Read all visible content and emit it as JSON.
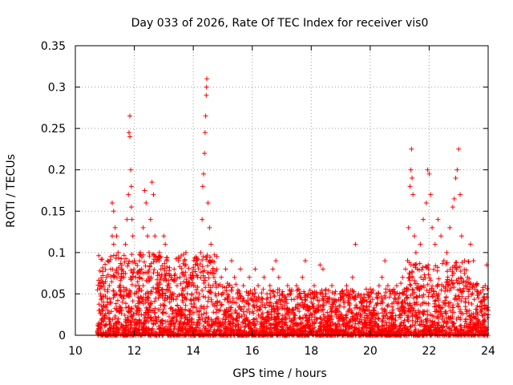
{
  "chart_data": {
    "type": "scatter",
    "title": "Day 033 of 2026, Rate Of TEC Index for receiver vis0",
    "xlabel": "GPS time / hours",
    "ylabel": "ROTI / TECUs",
    "xlim": [
      10,
      24
    ],
    "ylim": [
      0,
      0.35
    ],
    "x_ticks": [
      10,
      12,
      14,
      16,
      18,
      20,
      22,
      24
    ],
    "x_tick_labels": [
      "10",
      "12",
      "14",
      "16",
      "18",
      "20",
      "22",
      "24"
    ],
    "y_ticks": [
      0,
      0.05,
      0.1,
      0.15,
      0.2,
      0.25,
      0.3,
      0.35
    ],
    "y_tick_labels": [
      "0",
      "0.05",
      "0.1",
      "0.15",
      "0.2",
      "0.25",
      "0.3",
      "0.35"
    ],
    "grid": true,
    "marker": "plus",
    "marker_color": "#ff0000",
    "series": [
      {
        "name": "ROTI",
        "points": [
          [
            10.8,
            0.01
          ],
          [
            10.8,
            0.03
          ],
          [
            10.85,
            0.05
          ],
          [
            10.9,
            0.02
          ],
          [
            10.9,
            0.065
          ],
          [
            10.95,
            0.04
          ],
          [
            11.0,
            0.055
          ],
          [
            11.0,
            0.02
          ],
          [
            11.05,
            0.07
          ],
          [
            11.1,
            0.03
          ],
          [
            11.1,
            0.09
          ],
          [
            11.15,
            0.06
          ],
          [
            11.2,
            0.08
          ],
          [
            11.2,
            0.04
          ],
          [
            11.25,
            0.16
          ],
          [
            11.25,
            0.12
          ],
          [
            11.3,
            0.15
          ],
          [
            11.3,
            0.11
          ],
          [
            11.35,
            0.13
          ],
          [
            11.35,
            0.05
          ],
          [
            11.4,
            0.12
          ],
          [
            11.4,
            0.03
          ],
          [
            11.45,
            0.1
          ],
          [
            11.5,
            0.06
          ],
          [
            11.55,
            0.08
          ],
          [
            11.6,
            0.04
          ],
          [
            11.65,
            0.07
          ],
          [
            11.7,
            0.11
          ],
          [
            11.75,
            0.14
          ],
          [
            11.8,
            0.17
          ],
          [
            11.82,
            0.245
          ],
          [
            11.85,
            0.265
          ],
          [
            11.85,
            0.24
          ],
          [
            11.88,
            0.2
          ],
          [
            11.9,
            0.18
          ],
          [
            11.9,
            0.155
          ],
          [
            11.92,
            0.14
          ],
          [
            11.95,
            0.12
          ],
          [
            12.0,
            0.09
          ],
          [
            12.0,
            0.05
          ],
          [
            12.05,
            0.07
          ],
          [
            12.1,
            0.03
          ],
          [
            12.15,
            0.06
          ],
          [
            12.2,
            0.1
          ],
          [
            12.25,
            0.08
          ],
          [
            12.3,
            0.13
          ],
          [
            12.35,
            0.175
          ],
          [
            12.4,
            0.16
          ],
          [
            12.45,
            0.12
          ],
          [
            12.5,
            0.1
          ],
          [
            12.55,
            0.14
          ],
          [
            12.6,
            0.185
          ],
          [
            12.65,
            0.17
          ],
          [
            12.7,
            0.12
          ],
          [
            12.75,
            0.09
          ],
          [
            12.8,
            0.06
          ],
          [
            12.85,
            0.1
          ],
          [
            12.9,
            0.08
          ],
          [
            12.95,
            0.05
          ],
          [
            13.0,
            0.12
          ],
          [
            13.05,
            0.11
          ],
          [
            13.1,
            0.09
          ],
          [
            13.15,
            0.06
          ],
          [
            13.2,
            0.04
          ],
          [
            13.25,
            0.07
          ],
          [
            13.3,
            0.05
          ],
          [
            13.35,
            0.08
          ],
          [
            13.4,
            0.03
          ],
          [
            13.45,
            0.06
          ],
          [
            13.5,
            0.09
          ],
          [
            13.55,
            0.07
          ],
          [
            13.6,
            0.05
          ],
          [
            13.65,
            0.04
          ],
          [
            13.7,
            0.09
          ],
          [
            13.75,
            0.1
          ],
          [
            13.8,
            0.06
          ],
          [
            13.85,
            0.03
          ],
          [
            13.9,
            0.07
          ],
          [
            13.95,
            0.05
          ],
          [
            14.0,
            0.08
          ],
          [
            14.05,
            0.06
          ],
          [
            14.1,
            0.09
          ],
          [
            14.15,
            0.07
          ],
          [
            14.2,
            0.05
          ],
          [
            14.25,
            0.1
          ],
          [
            14.3,
            0.14
          ],
          [
            14.32,
            0.18
          ],
          [
            14.35,
            0.195
          ],
          [
            14.38,
            0.22
          ],
          [
            14.4,
            0.245
          ],
          [
            14.42,
            0.265
          ],
          [
            14.44,
            0.29
          ],
          [
            14.45,
            0.3
          ],
          [
            14.46,
            0.31
          ],
          [
            14.5,
            0.16
          ],
          [
            14.55,
            0.13
          ],
          [
            14.6,
            0.11
          ],
          [
            14.65,
            0.09
          ],
          [
            14.7,
            0.07
          ],
          [
            14.75,
            0.05
          ],
          [
            14.8,
            0.08
          ],
          [
            14.85,
            0.06
          ],
          [
            14.9,
            0.04
          ],
          [
            14.95,
            0.07
          ],
          [
            15.0,
            0.05
          ],
          [
            15.1,
            0.08
          ],
          [
            15.2,
            0.06
          ],
          [
            15.3,
            0.09
          ],
          [
            15.4,
            0.07
          ],
          [
            15.5,
            0.05
          ],
          [
            15.6,
            0.08
          ],
          [
            15.7,
            0.06
          ],
          [
            15.8,
            0.04
          ],
          [
            15.9,
            0.07
          ],
          [
            16.0,
            0.05
          ],
          [
            16.1,
            0.08
          ],
          [
            16.2,
            0.06
          ],
          [
            16.3,
            0.04
          ],
          [
            16.4,
            0.07
          ],
          [
            16.5,
            0.05
          ],
          [
            16.6,
            0.06
          ],
          [
            16.7,
            0.08
          ],
          [
            16.8,
            0.09
          ],
          [
            16.9,
            0.07
          ],
          [
            17.0,
            0.05
          ],
          [
            17.1,
            0.04
          ],
          [
            17.2,
            0.06
          ],
          [
            17.3,
            0.05
          ],
          [
            17.4,
            0.03
          ],
          [
            17.5,
            0.06
          ],
          [
            17.6,
            0.05
          ],
          [
            17.7,
            0.07
          ],
          [
            17.8,
            0.09
          ],
          [
            17.9,
            0.05
          ],
          [
            18.0,
            0.04
          ],
          [
            18.1,
            0.06
          ],
          [
            18.2,
            0.05
          ],
          [
            18.3,
            0.085
          ],
          [
            18.4,
            0.08
          ],
          [
            18.5,
            0.05
          ],
          [
            18.6,
            0.04
          ],
          [
            18.7,
            0.06
          ],
          [
            18.8,
            0.05
          ],
          [
            18.9,
            0.03
          ],
          [
            19.0,
            0.05
          ],
          [
            19.1,
            0.04
          ],
          [
            19.2,
            0.06
          ],
          [
            19.3,
            0.05
          ],
          [
            19.4,
            0.07
          ],
          [
            19.5,
            0.11
          ],
          [
            19.6,
            0.05
          ],
          [
            19.7,
            0.04
          ],
          [
            19.8,
            0.03
          ],
          [
            19.9,
            0.05
          ],
          [
            20.0,
            0.04
          ],
          [
            20.1,
            0.03
          ],
          [
            20.2,
            0.05
          ],
          [
            20.3,
            0.06
          ],
          [
            20.4,
            0.07
          ],
          [
            20.5,
            0.09
          ],
          [
            20.6,
            0.06
          ],
          [
            20.7,
            0.05
          ],
          [
            20.8,
            0.04
          ],
          [
            20.9,
            0.06
          ],
          [
            21.0,
            0.05
          ],
          [
            21.1,
            0.07
          ],
          [
            21.2,
            0.08
          ],
          [
            21.3,
            0.13
          ],
          [
            21.35,
            0.18
          ],
          [
            21.38,
            0.2
          ],
          [
            21.4,
            0.225
          ],
          [
            21.42,
            0.19
          ],
          [
            21.45,
            0.17
          ],
          [
            21.5,
            0.12
          ],
          [
            21.55,
            0.1
          ],
          [
            21.6,
            0.08
          ],
          [
            21.7,
            0.11
          ],
          [
            21.8,
            0.14
          ],
          [
            21.9,
            0.16
          ],
          [
            21.95,
            0.2
          ],
          [
            22.0,
            0.195
          ],
          [
            22.05,
            0.17
          ],
          [
            22.1,
            0.13
          ],
          [
            22.2,
            0.11
          ],
          [
            22.3,
            0.14
          ],
          [
            22.4,
            0.12
          ],
          [
            22.5,
            0.09
          ],
          [
            22.6,
            0.1
          ],
          [
            22.7,
            0.13
          ],
          [
            22.8,
            0.155
          ],
          [
            22.85,
            0.165
          ],
          [
            22.9,
            0.19
          ],
          [
            22.95,
            0.2
          ],
          [
            23.0,
            0.225
          ],
          [
            23.05,
            0.17
          ],
          [
            23.1,
            0.12
          ],
          [
            23.2,
            0.09
          ],
          [
            23.3,
            0.07
          ],
          [
            23.4,
            0.11
          ],
          [
            23.5,
            0.09
          ],
          [
            23.6,
            0.06
          ],
          [
            23.7,
            0.05
          ],
          [
            23.8,
            0.04
          ],
          [
            23.9,
            0.06
          ],
          [
            23.95,
            0.085
          ],
          [
            24.0,
            0.03
          ]
        ]
      }
    ]
  }
}
